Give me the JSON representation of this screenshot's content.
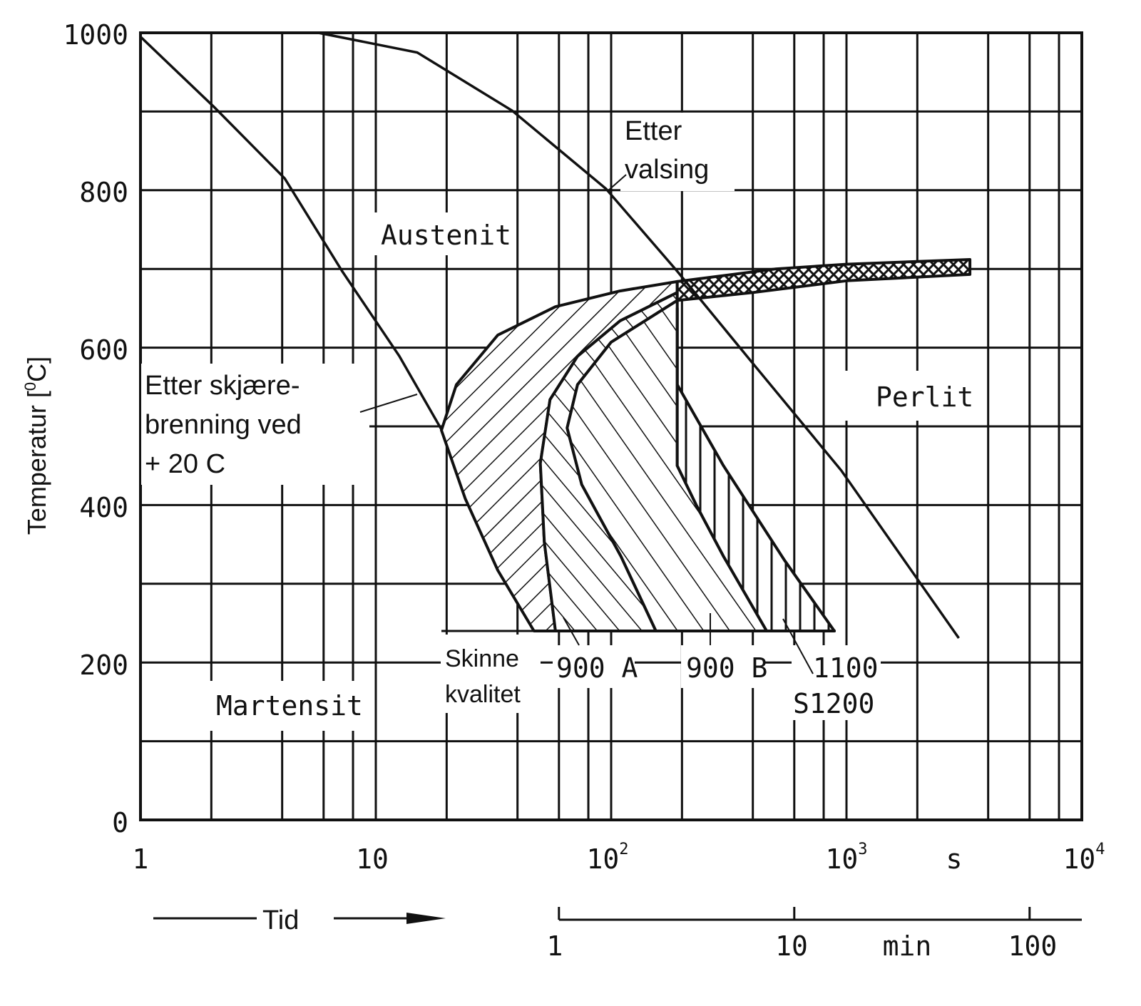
{
  "chart_data": {
    "type": "line",
    "ylabel_parts": [
      "Temperatur [",
      "0",
      "C]"
    ],
    "xaxis": {
      "scale": "log",
      "range": [
        1,
        10000
      ],
      "unit_label": "s",
      "tick_labels": [
        {
          "value": 1,
          "base": "1",
          "exp": ""
        },
        {
          "value": 10,
          "base": "10",
          "exp": ""
        },
        {
          "value": 100,
          "base": "10",
          "exp": "2"
        },
        {
          "value": 1000,
          "base": "10",
          "exp": "3"
        },
        {
          "value": 10000,
          "base": "10",
          "exp": "4"
        }
      ]
    },
    "yaxis": {
      "range": [
        0,
        1000
      ],
      "ticks": [
        0,
        200,
        400,
        600,
        800,
        1000
      ]
    },
    "grid": true,
    "grid_x_values": [
      2,
      4,
      6,
      8,
      10,
      20,
      40,
      60,
      80,
      100,
      200,
      400,
      600,
      800,
      1000,
      2000,
      4000,
      6000,
      8000
    ],
    "grid_y_values": [
      100,
      200,
      300,
      400,
      500,
      600,
      700,
      800,
      900
    ],
    "secondary_axis": {
      "label": "Tid",
      "unit_label": "min",
      "ticks": [
        {
          "value": 1,
          "label": "1"
        },
        {
          "value": 10,
          "label": "10"
        },
        {
          "value": 100,
          "label": "100"
        }
      ]
    },
    "cooling_curves": [
      {
        "name": "Etter valsing",
        "points": [
          [
            5.7,
            1000
          ],
          [
            15,
            975
          ],
          [
            38,
            901
          ],
          [
            95,
            802
          ],
          [
            191,
            697
          ],
          [
            400,
            580
          ],
          [
            950,
            444
          ],
          [
            3000,
            231
          ]
        ]
      },
      {
        "name": "Etter skjærebrenning ved + 20 C",
        "points": [
          [
            1,
            995
          ],
          [
            2.05,
            906
          ],
          [
            4.1,
            815
          ],
          [
            7.2,
            697
          ],
          [
            12.6,
            589
          ],
          [
            19.1,
            495
          ]
        ]
      }
    ],
    "ms_line": {
      "temperature": 240,
      "t_range": [
        19,
        900
      ]
    },
    "bands": [
      {
        "name": "Skinne kvalitet",
        "hatch": "diag-right",
        "outer": [
          [
            47,
            240
          ],
          [
            33,
            317
          ],
          [
            24,
            408
          ],
          [
            19,
            495
          ],
          [
            22,
            553
          ],
          [
            33,
            616
          ],
          [
            58,
            652
          ],
          [
            109,
            672
          ],
          [
            191,
            684
          ]
        ],
        "inner": [
          [
            191,
            670
          ],
          [
            109,
            634
          ],
          [
            72,
            589
          ],
          [
            55,
            534
          ],
          [
            50,
            453
          ],
          [
            52,
            353
          ],
          [
            58,
            240
          ]
        ]
      },
      {
        "name": "900 A",
        "hatch": "diag-left",
        "outer": [
          [
            58,
            240
          ],
          [
            52,
            353
          ],
          [
            50,
            453
          ],
          [
            55,
            534
          ],
          [
            72,
            589
          ],
          [
            109,
            634
          ],
          [
            191,
            670
          ]
        ],
        "inner": [
          [
            191,
            660
          ],
          [
            100,
            607
          ],
          [
            72,
            553
          ],
          [
            65,
            498
          ],
          [
            75,
            426
          ],
          [
            110,
            335
          ],
          [
            155,
            240
          ]
        ]
      },
      {
        "name": "900 B",
        "hatch": "diag-left-wide",
        "outer": [
          [
            155,
            240
          ],
          [
            110,
            335
          ],
          [
            75,
            426
          ],
          [
            65,
            498
          ],
          [
            72,
            553
          ],
          [
            100,
            607
          ],
          [
            191,
            660
          ]
        ],
        "inner": [
          [
            191,
            650
          ],
          [
            191,
            534
          ],
          [
            191,
            450
          ],
          [
            230,
            400
          ],
          [
            300,
            335
          ],
          [
            458,
            240
          ]
        ]
      },
      {
        "name": "1100 / S1200",
        "hatch": "vertical",
        "outer": [
          [
            191,
            650
          ],
          [
            191,
            534
          ],
          [
            191,
            450
          ],
          [
            230,
            400
          ],
          [
            300,
            335
          ],
          [
            458,
            240
          ]
        ],
        "inner": [
          [
            888,
            240
          ],
          [
            545,
            330
          ],
          [
            300,
            450
          ],
          [
            191,
            553
          ]
        ]
      },
      {
        "name": "upper",
        "hatch": "cross",
        "outer": [
          [
            191,
            684
          ],
          [
            500,
            700
          ],
          [
            1000,
            706
          ],
          [
            3345,
            712
          ]
        ],
        "inner": [
          [
            3345,
            693
          ],
          [
            1000,
            685
          ],
          [
            400,
            670
          ],
          [
            191,
            660
          ]
        ]
      }
    ],
    "annotations": {
      "etter_valsing": [
        "Etter",
        "valsing"
      ],
      "austenit": "Austenit",
      "perlit": "Perlit",
      "etter_skjaere": [
        "Etter skjære-",
        "brenning ved",
        "+ 20 C"
      ],
      "martensit": "Martensit",
      "skinne": [
        "Skinne",
        "kvalitet"
      ],
      "q900a": "900 A",
      "q900b": "900 B",
      "q1100": "1100",
      "s1200": "S1200"
    }
  }
}
